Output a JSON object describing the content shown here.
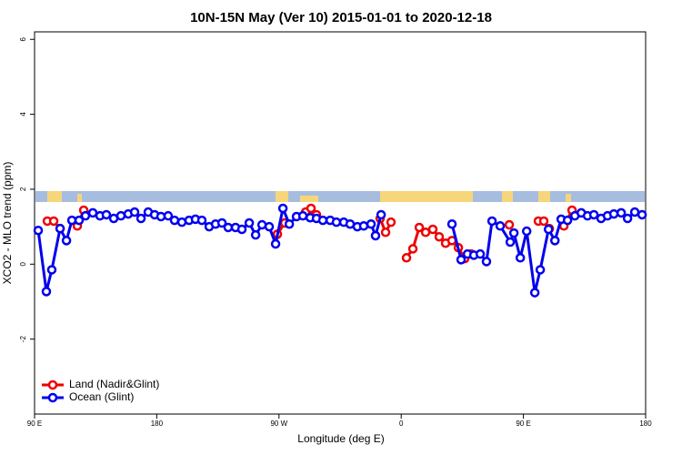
{
  "chart_data": {
    "type": "line",
    "title": "10N-15N May (Ver 10)   2015-01-01 to 2020-12-18",
    "xlabel": "Longitude (deg E)",
    "ylabel": "XCO2 - MLO trend (ppm)",
    "xlim": [
      90,
      540
    ],
    "ylim": [
      -4,
      6.2
    ],
    "xticks": [
      {
        "value": 90,
        "label": "90 E"
      },
      180,
      {
        "value": 270,
        "label": "90 W"
      },
      {
        "value": 360,
        "label": "0"
      },
      {
        "value": 450,
        "label": "90 E"
      },
      {
        "value": 540,
        "label": "180"
      }
    ],
    "yticks": [
      -2,
      0,
      2,
      4,
      6
    ],
    "legend": "bottom-left",
    "series": [
      {
        "name": "Land (Nadir&Glint)",
        "color": "#ee0000",
        "x": [
          99.4,
          104.1,
          108.8,
          null,
          121.5,
          126.2,
          null,
          268.8,
          274.2,
          null,
          289.6,
          293.6,
          297.6,
          null,
          344.5,
          348.5,
          352.5,
          null,
          363.9,
          368.6,
          373.3,
          378.0,
          383.3,
          388.0,
          392.7,
          397.4,
          402.1,
          406.8,
          411.5,
          null,
          439.6,
          null,
          461.0,
          465.0,
          469.1,
          null,
          479.8,
          485.8
        ],
        "values": [
          1.15,
          1.15,
          0.95,
          null,
          1.02,
          1.44,
          null,
          0.8,
          1.1,
          null,
          1.39,
          1.49,
          1.32,
          null,
          1.22,
          0.85,
          1.12,
          null,
          0.17,
          0.41,
          0.98,
          0.85,
          0.93,
          0.73,
          0.56,
          0.63,
          0.44,
          0.15,
          0.27,
          null,
          1.05,
          null,
          1.15,
          1.15,
          0.95,
          null,
          1.02,
          1.44
        ]
      },
      {
        "name": "Ocean (Glint)",
        "color": "#0000ee",
        "x": [
          92.7,
          98.7,
          102.7,
          108.8,
          113.5,
          117.5,
          122.8,
          127.5,
          132.9,
          138.2,
          142.9,
          148.3,
          153.6,
          159.0,
          163.7,
          168.4,
          173.7,
          178.4,
          183.1,
          188.4,
          193.1,
          198.5,
          203.8,
          208.5,
          213.2,
          218.6,
          223.3,
          228.0,
          232.6,
          238.0,
          242.7,
          248.1,
          252.8,
          257.5,
          262.8,
          267.5,
          272.9,
          277.6,
          282.9,
          287.6,
          293.0,
          297.6,
          302.3,
          307.7,
          312.3,
          317.7,
          322.4,
          327.7,
          332.4,
          337.8,
          341.1,
          345.2,
          null,
          397.4,
          404.1,
          408.8,
          413.5,
          418.2,
          422.8,
          426.9,
          432.9,
          440.3,
          443.0,
          447.7,
          452.4,
          458.4,
          462.4,
          468.5,
          473.2,
          477.8,
          482.5,
          487.9,
          492.6,
          497.2,
          501.9,
          507.2,
          511.9,
          516.6,
          522.0,
          526.7,
          532.0,
          537.4
        ],
        "values": [
          0.9,
          -0.73,
          -0.15,
          0.95,
          0.63,
          1.17,
          1.17,
          1.29,
          1.37,
          1.29,
          1.32,
          1.22,
          1.29,
          1.34,
          1.39,
          1.22,
          1.39,
          1.32,
          1.27,
          1.29,
          1.17,
          1.12,
          1.17,
          1.2,
          1.17,
          1.0,
          1.07,
          1.1,
          0.98,
          0.98,
          0.93,
          1.1,
          0.78,
          1.05,
          1.0,
          0.54,
          1.49,
          1.07,
          1.27,
          1.29,
          1.24,
          1.22,
          1.17,
          1.17,
          1.12,
          1.12,
          1.07,
          1.0,
          1.02,
          1.07,
          0.76,
          1.32,
          null,
          1.07,
          0.12,
          0.27,
          0.24,
          0.27,
          0.07,
          1.15,
          1.02,
          0.59,
          0.83,
          0.17,
          0.88,
          -0.76,
          -0.15,
          0.93,
          0.63,
          1.2,
          1.17,
          1.29,
          1.37,
          1.29,
          1.32,
          1.22,
          1.29,
          1.34,
          1.37,
          1.22,
          1.39,
          1.32
        ]
      }
    ]
  }
}
